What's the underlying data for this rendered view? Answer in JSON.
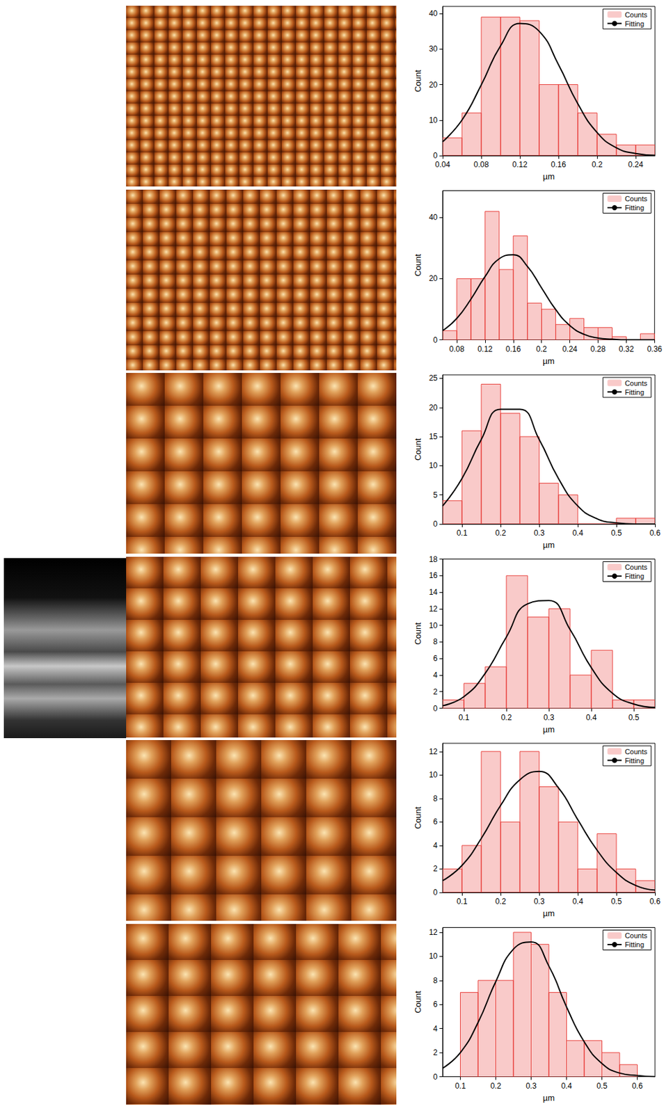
{
  "chart_data": [
    {
      "type": "histogram",
      "xlabel": "µm",
      "ylabel": "Count",
      "bins": [
        0.04,
        0.06,
        0.08,
        0.1,
        0.12,
        0.14,
        0.16,
        0.18,
        0.2,
        0.22,
        0.24,
        0.26
      ],
      "series": [
        {
          "name": "Counts",
          "type": "bar",
          "color": "#e8413c",
          "values": [
            5,
            12,
            39,
            39,
            38,
            20,
            20,
            12,
            6,
            3,
            3
          ]
        },
        {
          "name": "Fitting",
          "type": "line",
          "color": "#000000",
          "x": [
            0.04,
            0.06,
            0.08,
            0.1,
            0.12,
            0.14,
            0.16,
            0.18,
            0.2,
            0.22,
            0.24,
            0.26
          ],
          "values": [
            3.9,
            10.0,
            19.9,
            30.9,
            37.2,
            35.0,
            25.6,
            14.6,
            6.5,
            2.2,
            0.6,
            0.1
          ]
        }
      ],
      "xlim": [
        0.04,
        0.26
      ],
      "xticks": [
        0.04,
        0.08,
        0.12,
        0.16,
        0.2,
        0.24
      ],
      "ylim": [
        0,
        42
      ],
      "yticks": [
        0,
        10,
        20,
        30,
        40
      ],
      "legend": "upper right",
      "grid": false
    },
    {
      "type": "histogram",
      "xlabel": "µm",
      "ylabel": "Count",
      "bins": [
        0.06,
        0.08,
        0.1,
        0.12,
        0.14,
        0.16,
        0.18,
        0.2,
        0.22,
        0.24,
        0.26,
        0.28,
        0.3,
        0.32,
        0.34,
        0.36
      ],
      "series": [
        {
          "name": "Counts",
          "type": "bar",
          "color": "#e8413c",
          "values": [
            3,
            20,
            20,
            42,
            23,
            34,
            12,
            10,
            5,
            7,
            4,
            4,
            1,
            0,
            2
          ]
        },
        {
          "name": "Fitting",
          "type": "line",
          "color": "#000000",
          "x": [
            0.06,
            0.08,
            0.1,
            0.12,
            0.14,
            0.16,
            0.18,
            0.2,
            0.22,
            0.24,
            0.26,
            0.28,
            0.3,
            0.32,
            0.34,
            0.36
          ],
          "values": [
            3.0,
            7.0,
            13.3,
            20.7,
            26.5,
            27.8,
            24.0,
            17.0,
            9.9,
            4.7,
            1.8,
            0.6,
            0.2,
            0,
            0,
            0
          ]
        }
      ],
      "xlim": [
        0.06,
        0.36
      ],
      "xticks": [
        0.08,
        0.12,
        0.16,
        0.2,
        0.24,
        0.28,
        0.32,
        0.36
      ],
      "ylim": [
        0,
        48.8
      ],
      "yticks": [
        0,
        20,
        40
      ],
      "legend": "upper right",
      "grid": false
    },
    {
      "type": "histogram",
      "xlabel": "µm",
      "ylabel": "Count",
      "bins": [
        0.05,
        0.1,
        0.15,
        0.2,
        0.25,
        0.3,
        0.35,
        0.4,
        0.45,
        0.5,
        0.55,
        0.6
      ],
      "series": [
        {
          "name": "Counts",
          "type": "bar",
          "color": "#e8413c",
          "values": [
            4,
            16,
            24,
            19,
            15,
            7,
            5,
            0,
            0,
            1,
            1
          ]
        },
        {
          "name": "Fitting",
          "type": "line",
          "color": "#000000",
          "x": [
            0.05,
            0.1,
            0.15,
            0.2,
            0.25,
            0.3,
            0.35,
            0.4,
            0.45,
            0.5,
            0.55,
            0.6
          ],
          "values": [
            3.1,
            7.8,
            14.5,
            19.7,
            19.7,
            14.5,
            7.8,
            3.1,
            0.9,
            0.2,
            0,
            0
          ]
        }
      ],
      "xlim": [
        0.05,
        0.6
      ],
      "xticks": [
        0.1,
        0.2,
        0.3,
        0.4,
        0.5,
        0.6
      ],
      "ylim": [
        0,
        25.6
      ],
      "yticks": [
        0,
        5,
        10,
        15,
        20,
        25
      ],
      "legend": "upper right",
      "grid": false
    },
    {
      "type": "histogram",
      "xlabel": "µm",
      "ylabel": "Count",
      "bins": [
        0.05,
        0.1,
        0.15,
        0.2,
        0.25,
        0.3,
        0.35,
        0.4,
        0.45,
        0.5,
        0.55
      ],
      "series": [
        {
          "name": "Counts",
          "type": "bar",
          "color": "#e8413c",
          "values": [
            1,
            3,
            5,
            16,
            11,
            12,
            4,
            7,
            1,
            1
          ]
        },
        {
          "name": "Fitting",
          "type": "line",
          "color": "#000000",
          "x": [
            0.05,
            0.1,
            0.15,
            0.2,
            0.25,
            0.3,
            0.35,
            0.4,
            0.45,
            0.5,
            0.55
          ],
          "values": [
            0.3,
            1.4,
            4.2,
            8.6,
            12.6,
            13.0,
            9.5,
            4.9,
            1.8,
            0.5,
            0.1
          ]
        }
      ],
      "xlim": [
        0.05,
        0.55
      ],
      "xticks": [
        0.1,
        0.2,
        0.3,
        0.4,
        0.5
      ],
      "ylim": [
        0,
        18
      ],
      "yticks": [
        0,
        2,
        4,
        6,
        8,
        10,
        12,
        14,
        16,
        18
      ],
      "legend": "upper right",
      "grid": false
    },
    {
      "type": "histogram",
      "xlabel": "µm",
      "ylabel": "Count",
      "bins": [
        0.05,
        0.1,
        0.15,
        0.2,
        0.25,
        0.3,
        0.35,
        0.4,
        0.45,
        0.5,
        0.55,
        0.6
      ],
      "series": [
        {
          "name": "Counts",
          "type": "bar",
          "color": "#e8413c",
          "values": [
            2,
            4,
            12,
            6,
            12,
            9,
            6,
            2,
            5,
            2,
            1
          ]
        },
        {
          "name": "Fitting",
          "type": "line",
          "color": "#000000",
          "x": [
            0.05,
            0.1,
            0.15,
            0.2,
            0.25,
            0.3,
            0.35,
            0.4,
            0.45,
            0.5,
            0.55,
            0.6
          ],
          "values": [
            1.0,
            2.3,
            4.6,
            7.4,
            9.6,
            10.3,
            8.9,
            6.2,
            3.6,
            1.7,
            0.6,
            0.2
          ]
        }
      ],
      "xlim": [
        0.05,
        0.6
      ],
      "xticks": [
        0.1,
        0.2,
        0.3,
        0.4,
        0.5,
        0.6
      ],
      "ylim": [
        0,
        12.7
      ],
      "yticks": [
        0,
        2,
        4,
        6,
        8,
        10,
        12
      ],
      "legend": "upper right",
      "grid": false
    },
    {
      "type": "histogram",
      "xlabel": "µm",
      "ylabel": "Count",
      "bins": [
        0.1,
        0.15,
        0.2,
        0.25,
        0.3,
        0.35,
        0.4,
        0.45,
        0.5,
        0.55,
        0.6
      ],
      "series": [
        {
          "name": "Counts",
          "type": "bar",
          "color": "#e8413c",
          "values": [
            7,
            8,
            8,
            12,
            11,
            7,
            3,
            3,
            2,
            1
          ]
        },
        {
          "name": "Fitting",
          "type": "line",
          "color": "#000000",
          "x": [
            0.05,
            0.1,
            0.15,
            0.2,
            0.25,
            0.3,
            0.35,
            0.4,
            0.45,
            0.5,
            0.55,
            0.6,
            0.65
          ],
          "values": [
            0.7,
            2.0,
            4.5,
            7.9,
            10.6,
            11.2,
            9.2,
            5.8,
            2.9,
            1.1,
            0.3,
            0.1,
            0
          ]
        }
      ],
      "xlim": [
        0.05,
        0.65
      ],
      "xticks": [
        0.1,
        0.2,
        0.3,
        0.4,
        0.5,
        0.6
      ],
      "ylim": [
        0,
        12.4
      ],
      "yticks": [
        0,
        2,
        4,
        6,
        8,
        10,
        12
      ],
      "legend": "upper right",
      "grid": false
    }
  ]
}
